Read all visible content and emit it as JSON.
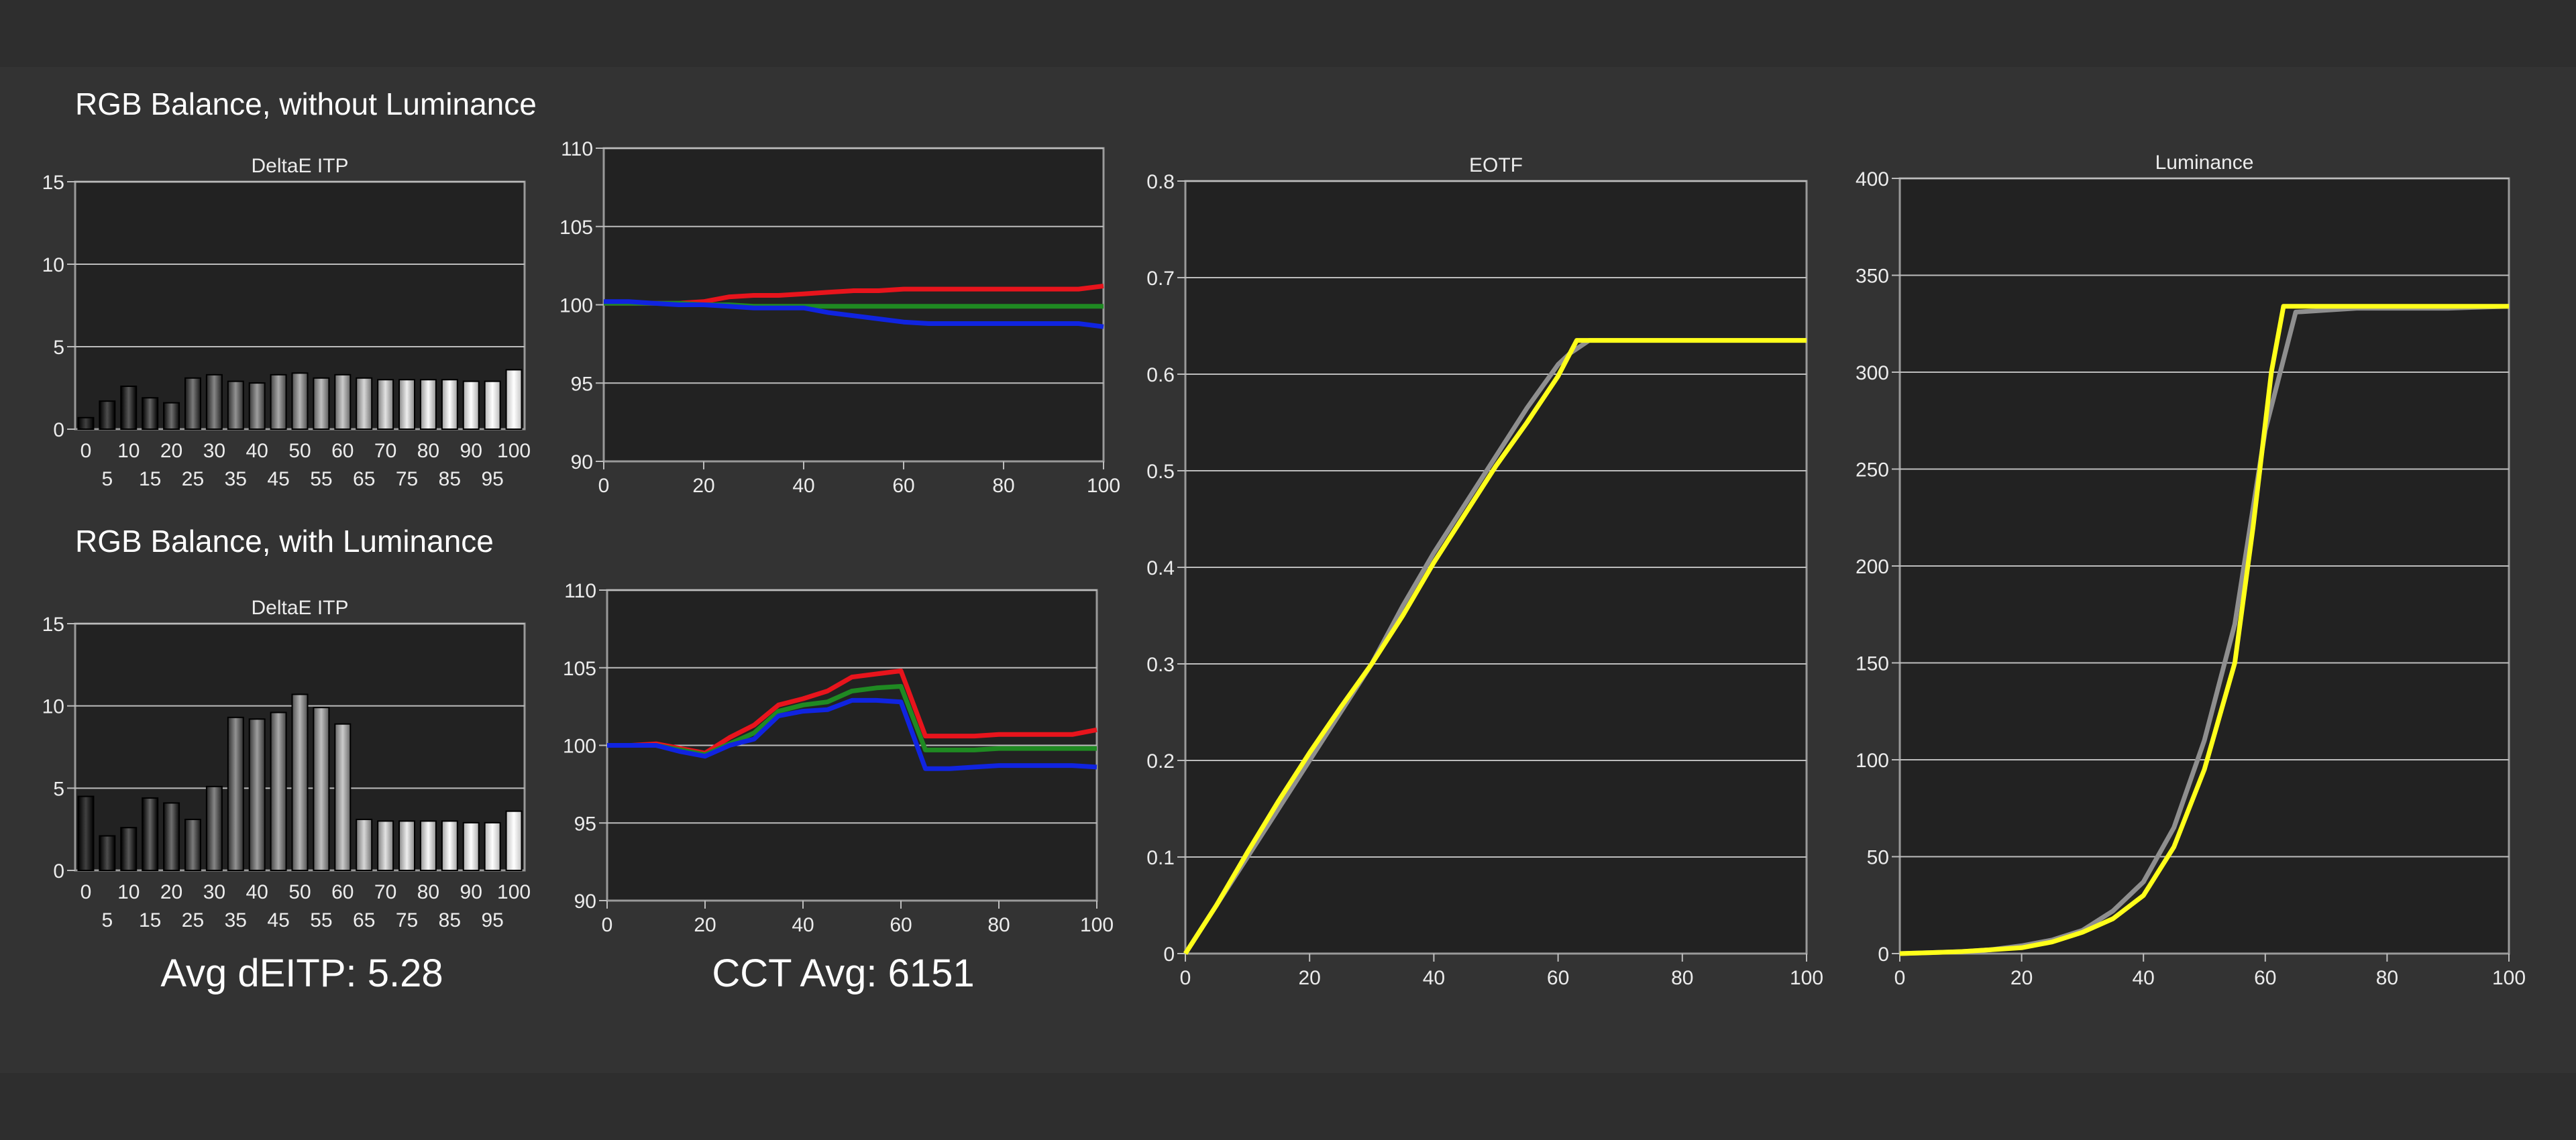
{
  "colors": {
    "background": "#333333",
    "plot_background": "#222222",
    "grid": "#bdbdbd",
    "red": "#e8141c",
    "green": "#1f8a22",
    "blue": "#1024e0",
    "yellow": "#ffff1a",
    "gray": "#8f8f8f"
  },
  "sections": {
    "without_luminance_title": "RGB Balance, without Luminance",
    "with_luminance_title": "RGB Balance, with Luminance"
  },
  "summary": {
    "avg_deitp": "Avg dEITP: 5.28",
    "cct_avg": "CCT Avg: 6151"
  },
  "chart_data": [
    {
      "id": "deltae_without",
      "type": "bar",
      "title": "DeltaE ITP",
      "categories": [
        "0",
        "5",
        "10",
        "15",
        "20",
        "25",
        "30",
        "35",
        "40",
        "45",
        "50",
        "55",
        "60",
        "65",
        "70",
        "75",
        "80",
        "85",
        "90",
        "95",
        "100"
      ],
      "values": [
        0.7,
        1.7,
        2.6,
        1.9,
        1.6,
        3.1,
        3.3,
        2.9,
        2.8,
        3.3,
        3.4,
        3.1,
        3.3,
        3.1,
        3.0,
        3.0,
        3.0,
        3.0,
        2.9,
        2.9,
        3.6
      ],
      "ylim": [
        0,
        15
      ],
      "yticks": [
        "0",
        "5",
        "10",
        "15"
      ],
      "grid": true
    },
    {
      "id": "rgb_without",
      "type": "line",
      "title": "",
      "xlim": [
        0,
        100
      ],
      "ylim": [
        90,
        110
      ],
      "xticks": [
        "0",
        "20",
        "40",
        "60",
        "80",
        "100"
      ],
      "yticks": [
        "90",
        "95",
        "100",
        "105",
        "110"
      ],
      "series": [
        {
          "color": "red",
          "x": [
            0,
            5,
            10,
            15,
            20,
            25,
            30,
            35,
            40,
            45,
            50,
            55,
            60,
            65,
            70,
            75,
            80,
            85,
            90,
            95,
            100
          ],
          "y": [
            100.1,
            100.1,
            100.1,
            100.1,
            100.2,
            100.5,
            100.6,
            100.6,
            100.7,
            100.8,
            100.9,
            100.9,
            101.0,
            101.0,
            101.0,
            101.0,
            101.0,
            101.0,
            101.0,
            101.0,
            101.2
          ]
        },
        {
          "color": "green",
          "x": [
            0,
            5,
            10,
            15,
            20,
            25,
            30,
            35,
            40,
            45,
            50,
            55,
            60,
            65,
            70,
            75,
            80,
            85,
            90,
            95,
            100
          ],
          "y": [
            100.1,
            100.1,
            100.1,
            100.1,
            100.0,
            100.0,
            99.9,
            99.9,
            99.9,
            99.9,
            99.9,
            99.9,
            99.9,
            99.9,
            99.9,
            99.9,
            99.9,
            99.9,
            99.9,
            99.9,
            99.9
          ]
        },
        {
          "color": "blue",
          "x": [
            0,
            5,
            10,
            15,
            20,
            25,
            30,
            35,
            40,
            45,
            50,
            55,
            60,
            65,
            70,
            75,
            80,
            85,
            90,
            95,
            100
          ],
          "y": [
            100.2,
            100.2,
            100.1,
            100.0,
            100.0,
            99.9,
            99.8,
            99.8,
            99.8,
            99.5,
            99.3,
            99.1,
            98.9,
            98.8,
            98.8,
            98.8,
            98.8,
            98.8,
            98.8,
            98.8,
            98.6
          ]
        }
      ],
      "grid": true
    },
    {
      "id": "deltae_with",
      "type": "bar",
      "title": "DeltaE ITP",
      "categories": [
        "0",
        "5",
        "10",
        "15",
        "20",
        "25",
        "30",
        "35",
        "40",
        "45",
        "50",
        "55",
        "60",
        "65",
        "70",
        "75",
        "80",
        "85",
        "90",
        "95",
        "100"
      ],
      "values": [
        4.5,
        2.1,
        2.6,
        4.4,
        4.1,
        3.1,
        5.1,
        9.3,
        9.2,
        9.6,
        10.7,
        9.9,
        8.9,
        3.1,
        3.0,
        3.0,
        3.0,
        3.0,
        2.9,
        2.9,
        3.6
      ],
      "ylim": [
        0,
        15
      ],
      "yticks": [
        "0",
        "5",
        "10",
        "15"
      ],
      "grid": true
    },
    {
      "id": "rgb_with",
      "type": "line",
      "title": "",
      "xlim": [
        0,
        100
      ],
      "ylim": [
        90,
        110
      ],
      "xticks": [
        "0",
        "20",
        "40",
        "60",
        "80",
        "100"
      ],
      "yticks": [
        "90",
        "95",
        "100",
        "105",
        "110"
      ],
      "series": [
        {
          "color": "red",
          "x": [
            0,
            5,
            10,
            15,
            20,
            25,
            30,
            35,
            40,
            45,
            50,
            55,
            60,
            65,
            70,
            75,
            80,
            85,
            90,
            95,
            100
          ],
          "y": [
            100.0,
            100.0,
            100.1,
            99.8,
            99.5,
            100.5,
            101.3,
            102.6,
            103.0,
            103.5,
            104.4,
            104.6,
            104.8,
            100.6,
            100.6,
            100.6,
            100.7,
            100.7,
            100.7,
            100.7,
            101.0
          ]
        },
        {
          "color": "green",
          "x": [
            0,
            5,
            10,
            15,
            20,
            25,
            30,
            35,
            40,
            45,
            50,
            55,
            60,
            65,
            70,
            75,
            80,
            85,
            90,
            95,
            100
          ],
          "y": [
            100.0,
            100.0,
            100.0,
            99.7,
            99.4,
            100.1,
            100.8,
            102.2,
            102.6,
            102.8,
            103.5,
            103.7,
            103.8,
            99.7,
            99.7,
            99.7,
            99.8,
            99.8,
            99.8,
            99.8,
            99.8
          ]
        },
        {
          "color": "blue",
          "x": [
            0,
            5,
            10,
            15,
            20,
            25,
            30,
            35,
            40,
            45,
            50,
            55,
            60,
            65,
            70,
            75,
            80,
            85,
            90,
            95,
            100
          ],
          "y": [
            100.0,
            100.0,
            100.0,
            99.6,
            99.3,
            100.0,
            100.4,
            101.9,
            102.2,
            102.3,
            102.9,
            102.9,
            102.8,
            98.5,
            98.5,
            98.6,
            98.7,
            98.7,
            98.7,
            98.7,
            98.6
          ]
        }
      ],
      "grid": true
    },
    {
      "id": "eotf",
      "type": "line",
      "title": "EOTF",
      "xlim": [
        0,
        100
      ],
      "ylim": [
        0,
        0.8
      ],
      "xticks": [
        "0",
        "20",
        "40",
        "60",
        "80",
        "100"
      ],
      "yticks": [
        "0",
        "0.1",
        "0.2",
        "0.3",
        "0.4",
        "0.5",
        "0.6",
        "0.7",
        "0.8"
      ],
      "series": [
        {
          "color": "gray",
          "x": [
            0,
            5,
            10,
            15,
            20,
            25,
            30,
            35,
            40,
            45,
            50,
            55,
            60,
            62,
            65,
            70,
            80,
            90,
            100
          ],
          "y": [
            0.0,
            0.05,
            0.1,
            0.15,
            0.2,
            0.25,
            0.3,
            0.36,
            0.415,
            0.465,
            0.515,
            0.565,
            0.61,
            0.622,
            0.635,
            0.635,
            0.635,
            0.635,
            0.635
          ]
        },
        {
          "color": "yellow",
          "x": [
            0,
            5,
            10,
            15,
            20,
            25,
            30,
            35,
            40,
            45,
            50,
            55,
            60,
            63,
            65,
            70,
            80,
            90,
            100
          ],
          "y": [
            0.0,
            0.05,
            0.105,
            0.158,
            0.208,
            0.255,
            0.3,
            0.35,
            0.405,
            0.455,
            0.505,
            0.55,
            0.598,
            0.635,
            0.635,
            0.635,
            0.635,
            0.635,
            0.635
          ]
        }
      ],
      "grid": true
    },
    {
      "id": "luminance",
      "type": "line",
      "title": "Luminance",
      "xlim": [
        0,
        100
      ],
      "ylim": [
        0,
        400
      ],
      "xticks": [
        "0",
        "20",
        "40",
        "60",
        "80",
        "100"
      ],
      "yticks": [
        "0",
        "50",
        "100",
        "150",
        "200",
        "250",
        "300",
        "350",
        "400"
      ],
      "series": [
        {
          "color": "gray",
          "x": [
            0,
            5,
            10,
            15,
            20,
            25,
            30,
            35,
            40,
            45,
            50,
            55,
            60,
            65,
            70,
            75,
            80,
            90,
            100
          ],
          "y": [
            0,
            0.5,
            1,
            2,
            4,
            7,
            12,
            22,
            37,
            65,
            110,
            170,
            270,
            331,
            332,
            333,
            333,
            333,
            334
          ]
        },
        {
          "color": "yellow",
          "x": [
            0,
            5,
            10,
            15,
            20,
            25,
            30,
            35,
            40,
            45,
            50,
            55,
            58,
            61,
            63,
            65,
            70,
            80,
            90,
            100
          ],
          "y": [
            0,
            0.5,
            1,
            2,
            3,
            6,
            11,
            18,
            30,
            55,
            95,
            150,
            220,
            300,
            334,
            334,
            334,
            334,
            334,
            334
          ]
        }
      ],
      "grid": true
    }
  ]
}
